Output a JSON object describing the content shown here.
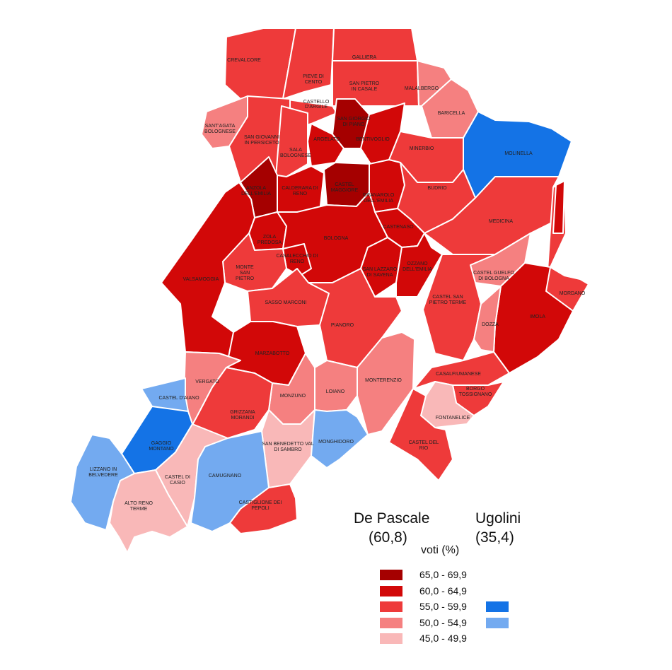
{
  "colors": {
    "r65": "#a50000",
    "r60": "#d20808",
    "r55": "#ee3a3a",
    "r50": "#f58080",
    "r45": "#f9b8b8",
    "b55": "#1473e6",
    "b50": "#73aaf0"
  },
  "legend": {
    "candidate_left": "De Pascale",
    "candidate_left_pct": "(60,8)",
    "candidate_right": "Ugolini",
    "candidate_right_pct": "(35,4)",
    "unit": "voti (%)",
    "classes": [
      "65,0 - 69,9",
      "60,0 - 64,9",
      "55,0 - 59,9",
      "50,0 - 54,9",
      "45,0 - 49,9"
    ]
  },
  "municipalities": [
    {
      "label": "CREVALCORE",
      "class": "r55"
    },
    {
      "label": "PIEVE DI CENTO",
      "class": "r55"
    },
    {
      "label": "GALLIERA",
      "class": "r55"
    },
    {
      "label": "SAN PIETRO IN CASALE",
      "class": "r55"
    },
    {
      "label": "MALALBERGO",
      "class": "r50"
    },
    {
      "label": "BARICELLA",
      "class": "r50"
    },
    {
      "label": "MOLINELLA",
      "class": "b55"
    },
    {
      "label": "CASTELLO D'ARGILE",
      "class": "r55"
    },
    {
      "label": "SAN GIORGIO DI PIANO",
      "class": "r65"
    },
    {
      "label": "ARGELATO",
      "class": "r60"
    },
    {
      "label": "BENTIVOGLIO",
      "class": "r60"
    },
    {
      "label": "SANT'AGATA BOLOGNESE",
      "class": "r50"
    },
    {
      "label": "SAN GIOVANNI IN PERSICETO",
      "class": "r55"
    },
    {
      "label": "SALA BOLOGNESE",
      "class": "r55"
    },
    {
      "label": "MINERBIO",
      "class": "r55"
    },
    {
      "label": "ANZOLA DELL'EMILIA",
      "class": "r65"
    },
    {
      "label": "CALDERARA DI RENO",
      "class": "r60"
    },
    {
      "label": "CASTEL MAGGIORE",
      "class": "r65"
    },
    {
      "label": "GRANAROLO DELL'EMILIA",
      "class": "r60"
    },
    {
      "label": "BUDRIO",
      "class": "r55"
    },
    {
      "label": "MEDICINA",
      "class": "r55"
    },
    {
      "label": "CASTENASO",
      "class": "r60"
    },
    {
      "label": "ZOLA PREDOSA",
      "class": "r60"
    },
    {
      "label": "BOLOGNA",
      "class": "r60"
    },
    {
      "label": "CASALECCHIO DI RENO",
      "class": "r60"
    },
    {
      "label": "SAN LAZZARO DI SAVENA",
      "class": "r60"
    },
    {
      "label": "OZZANO DELL'EMILIA",
      "class": "r60"
    },
    {
      "label": "MONTE SAN PIETRO",
      "class": "r55"
    },
    {
      "label": "VALSAMOGGIA",
      "class": "r60"
    },
    {
      "label": "CASTEL GUELFO DI BOLOGNA",
      "class": "r50"
    },
    {
      "label": "MORDANO",
      "class": "r55"
    },
    {
      "label": "SASSO MARCONI",
      "class": "r55"
    },
    {
      "label": "CASTEL SAN PIETRO TERME",
      "class": "r55"
    },
    {
      "label": "IMOLA",
      "class": "r60"
    },
    {
      "label": "DOZZA",
      "class": "r50"
    },
    {
      "label": "PIANORO",
      "class": "r55"
    },
    {
      "label": "MARZABOTTO",
      "class": "r60"
    },
    {
      "label": "MONTERENZIO",
      "class": "r50"
    },
    {
      "label": "CASALFIUMANESE",
      "class": "r55"
    },
    {
      "label": "VERGATO",
      "class": "r50"
    },
    {
      "label": "MONZUNO",
      "class": "r50"
    },
    {
      "label": "LOIANO",
      "class": "r50"
    },
    {
      "label": "BORGO TOSSIGNANO",
      "class": "r55"
    },
    {
      "label": "CASTEL D'AIANO",
      "class": "b50"
    },
    {
      "label": "GRIZZANA MORANDI",
      "class": "r55"
    },
    {
      "label": "FONTANELICE",
      "class": "r45"
    },
    {
      "label": "GAGGIO MONTANO",
      "class": "b55"
    },
    {
      "label": "SAN BENEDETTO VAL DI SAMBRO",
      "class": "r45"
    },
    {
      "label": "MONGHIDORO",
      "class": "b50"
    },
    {
      "label": "CASTEL DEL RIO",
      "class": "r55"
    },
    {
      "label": "LIZZANO IN BELVEDERE",
      "class": "b50"
    },
    {
      "label": "CASTEL DI CASIO",
      "class": "r45"
    },
    {
      "label": "CAMUGNANO",
      "class": "b50"
    },
    {
      "label": "ALTO RENO TERME",
      "class": "r45"
    },
    {
      "label": "CASTIGLIONE DEI PEPOLI",
      "class": "r55"
    }
  ]
}
